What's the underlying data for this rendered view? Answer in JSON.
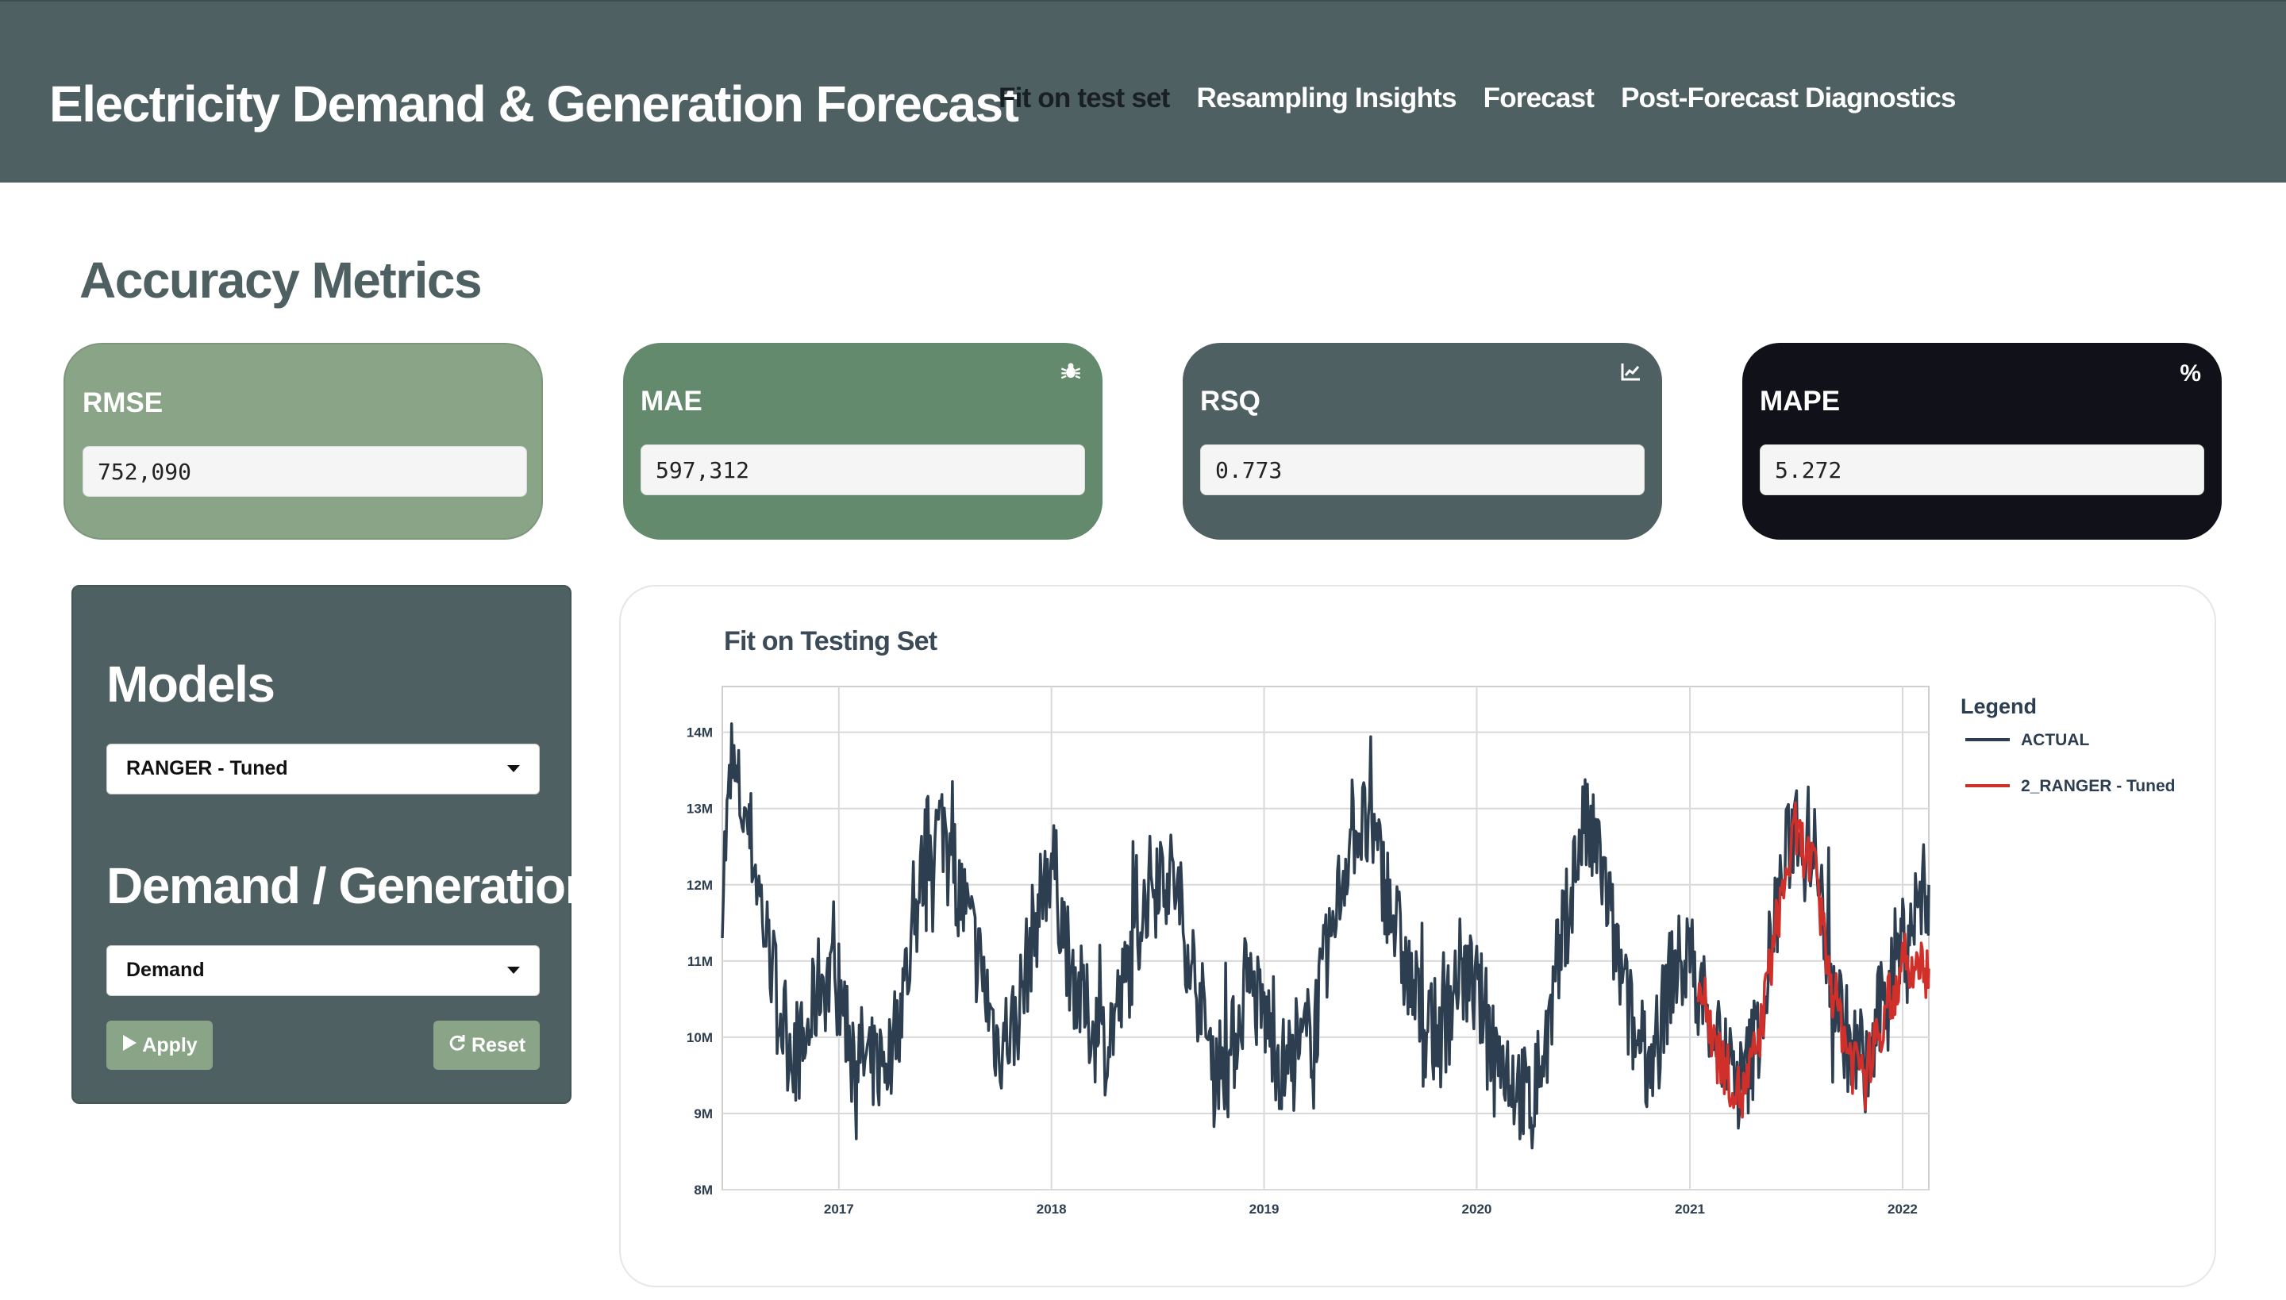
{
  "header": {
    "title": "Electricity Demand & Generation Forecast",
    "nav": [
      "Fit on test set",
      "Resampling Insights",
      "Forecast",
      "Post-Forecast Diagnostics"
    ],
    "active_tab": "Fit on test set"
  },
  "metrics": {
    "title": "Accuracy Metrics",
    "rmse": {
      "label": "RMSE",
      "value": "752,090"
    },
    "mae": {
      "label": "MAE",
      "value": "597,312",
      "icon": "bug-icon"
    },
    "rsq": {
      "label": "RSQ",
      "value": "0.773",
      "icon": "chart-line-icon"
    },
    "mape": {
      "label": "MAPE",
      "value": "5.272",
      "icon": "percent-icon"
    }
  },
  "sidebar": {
    "models_title": "Models",
    "model_selected": "RANGER - Tuned",
    "dg_title": "Demand / Generation",
    "dg_selected": "Demand",
    "apply_label": "Apply",
    "reset_label": "Reset"
  },
  "colors": {
    "header": "#4e6061",
    "rmse_card": "#89a487",
    "mae_card": "#638a6c",
    "rsq_card": "#4e6061",
    "mape_card": "#11111a",
    "actual_line": "#2c3e50",
    "forecast_line": "#d1302a"
  },
  "chart_data": {
    "type": "line",
    "title": "Fit on Testing Set",
    "legend_title": "Legend",
    "legend_position": "right",
    "grid": true,
    "x_range": [
      "2016-06-15",
      "2022-02-15"
    ],
    "ylim": [
      8000000,
      14600000
    ],
    "y_ticks": [
      {
        "v": 8000000,
        "label": "8M"
      },
      {
        "v": 9000000,
        "label": "9M"
      },
      {
        "v": 10000000,
        "label": "10M"
      },
      {
        "v": 11000000,
        "label": "11M"
      },
      {
        "v": 12000000,
        "label": "12M"
      },
      {
        "v": 13000000,
        "label": "13M"
      },
      {
        "v": 14000000,
        "label": "14M"
      }
    ],
    "x_ticks": [
      {
        "v": "2017-01-01",
        "label": "2017"
      },
      {
        "v": "2018-01-01",
        "label": "2018"
      },
      {
        "v": "2019-01-01",
        "label": "2019"
      },
      {
        "v": "2020-01-01",
        "label": "2020"
      },
      {
        "v": "2021-01-01",
        "label": "2021"
      },
      {
        "v": "2022-01-01",
        "label": "2022"
      }
    ],
    "series": [
      {
        "name": "ACTUAL",
        "color": "#2c3e50",
        "points": [
          [
            "2016-06-15",
            12000000
          ],
          [
            "2016-07-01",
            13500000
          ],
          [
            "2016-08-01",
            12700000
          ],
          [
            "2016-09-01",
            11200000
          ],
          [
            "2016-10-01",
            10000000
          ],
          [
            "2016-11-01",
            9800000
          ],
          [
            "2016-12-01",
            10800000
          ],
          [
            "2017-01-01",
            10600000
          ],
          [
            "2017-02-01",
            9800000
          ],
          [
            "2017-03-01",
            9600000
          ],
          [
            "2017-04-01",
            9800000
          ],
          [
            "2017-05-01",
            11000000
          ],
          [
            "2017-06-01",
            12500000
          ],
          [
            "2017-07-01",
            12800000
          ],
          [
            "2017-08-01",
            11800000
          ],
          [
            "2017-09-01",
            10900000
          ],
          [
            "2017-10-01",
            9900000
          ],
          [
            "2017-11-01",
            10200000
          ],
          [
            "2017-12-01",
            11400000
          ],
          [
            "2018-01-01",
            12400000
          ],
          [
            "2018-02-01",
            11000000
          ],
          [
            "2018-03-01",
            10300000
          ],
          [
            "2018-04-01",
            9900000
          ],
          [
            "2018-05-01",
            10500000
          ],
          [
            "2018-06-01",
            11500000
          ],
          [
            "2018-07-01",
            12300000
          ],
          [
            "2018-08-01",
            12000000
          ],
          [
            "2018-09-01",
            10900000
          ],
          [
            "2018-10-01",
            9800000
          ],
          [
            "2018-11-01",
            9600000
          ],
          [
            "2018-12-01",
            10700000
          ],
          [
            "2019-01-01",
            10300000
          ],
          [
            "2019-02-01",
            9600000
          ],
          [
            "2019-03-01",
            9700000
          ],
          [
            "2019-04-01",
            10300000
          ],
          [
            "2019-05-01",
            11500000
          ],
          [
            "2019-06-01",
            12800000
          ],
          [
            "2019-07-01",
            12700000
          ],
          [
            "2019-08-01",
            11900000
          ],
          [
            "2019-09-01",
            10900000
          ],
          [
            "2019-10-01",
            10200000
          ],
          [
            "2019-11-01",
            10000000
          ],
          [
            "2019-12-01",
            10900000
          ],
          [
            "2020-01-01",
            10600000
          ],
          [
            "2020-02-01",
            9900000
          ],
          [
            "2020-03-01",
            9500000
          ],
          [
            "2020-04-01",
            9100000
          ],
          [
            "2020-05-01",
            10000000
          ],
          [
            "2020-06-01",
            11500000
          ],
          [
            "2020-07-01",
            12800000
          ],
          [
            "2020-08-01",
            12300000
          ],
          [
            "2020-09-01",
            10900000
          ],
          [
            "2020-10-01",
            9900000
          ],
          [
            "2020-11-01",
            9700000
          ],
          [
            "2020-12-01",
            10900000
          ],
          [
            "2021-01-01",
            11000000
          ],
          [
            "2021-02-01",
            10400000
          ],
          [
            "2021-03-01",
            9700000
          ],
          [
            "2021-04-01",
            9300000
          ],
          [
            "2021-05-01",
            10200000
          ],
          [
            "2021-06-01",
            11800000
          ],
          [
            "2021-07-01",
            12900000
          ],
          [
            "2021-08-01",
            12500000
          ],
          [
            "2021-09-01",
            10800000
          ],
          [
            "2021-10-01",
            9900000
          ],
          [
            "2021-11-01",
            9500000
          ],
          [
            "2021-12-01",
            10600000
          ],
          [
            "2022-01-01",
            11300000
          ],
          [
            "2022-02-15",
            12000000
          ]
        ]
      },
      {
        "name": "2_RANGER - Tuned",
        "color": "#d1302a",
        "points": [
          [
            "2021-01-15",
            10700000
          ],
          [
            "2021-02-01",
            10300000
          ],
          [
            "2021-03-01",
            9600000
          ],
          [
            "2021-04-01",
            9200000
          ],
          [
            "2021-05-01",
            10000000
          ],
          [
            "2021-06-01",
            11600000
          ],
          [
            "2021-07-01",
            12700000
          ],
          [
            "2021-08-01",
            12200000
          ],
          [
            "2021-09-01",
            10700000
          ],
          [
            "2021-10-01",
            9800000
          ],
          [
            "2021-11-01",
            9600000
          ],
          [
            "2021-12-01",
            10300000
          ],
          [
            "2022-01-01",
            10900000
          ],
          [
            "2022-02-15",
            10900000
          ]
        ]
      }
    ]
  }
}
